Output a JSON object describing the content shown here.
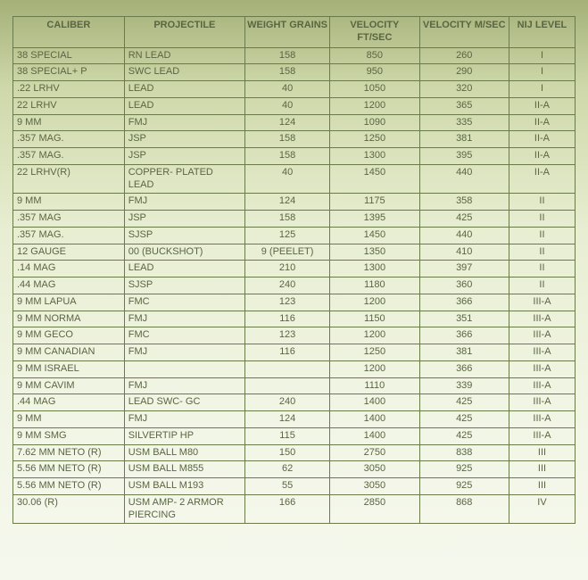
{
  "table": {
    "columns": [
      {
        "label": "CALIBER",
        "align": "left"
      },
      {
        "label": "PROJECTILE",
        "align": "left"
      },
      {
        "label": "WEIGHT GRAINS",
        "align": "center"
      },
      {
        "label": "VELOCITY FT/SEC",
        "align": "center"
      },
      {
        "label": "VELOCITY M/SEC",
        "align": "center"
      },
      {
        "label": "NIJ LEVEL",
        "align": "center"
      }
    ],
    "rows": [
      [
        "38 SPECIAL",
        "RN LEAD",
        "158",
        "850",
        "260",
        "I"
      ],
      [
        "38 SPECIAL+ P",
        "SWC LEAD",
        "158",
        "950",
        "290",
        "I"
      ],
      [
        ".22 LRHV",
        "LEAD",
        "40",
        "1050",
        "320",
        "I"
      ],
      [
        "22 LRHV",
        "LEAD",
        "40",
        "1200",
        "365",
        "II-A"
      ],
      [
        "9 MM",
        "FMJ",
        "124",
        "1090",
        "335",
        "II-A"
      ],
      [
        ".357 MAG.",
        "JSP",
        "158",
        "1250",
        "381",
        "II-A"
      ],
      [
        ".357 MAG.",
        "JSP",
        "158",
        "1300",
        "395",
        "II-A"
      ],
      [
        "22 LRHV(R)",
        "COPPER- PLATED LEAD",
        "40",
        "1450",
        "440",
        "II-A"
      ],
      [
        "9 MM",
        "FMJ",
        "124",
        "1175",
        "358",
        "II"
      ],
      [
        ".357 MAG",
        "JSP",
        "158",
        "1395",
        "425",
        "II"
      ],
      [
        ".357 MAG.",
        "SJSP",
        "125",
        "1450",
        "440",
        "II"
      ],
      [
        "12 GAUGE",
        "00 (BUCKSHOT)",
        "9 (PEELET)",
        "1350",
        "410",
        "II"
      ],
      [
        ".14 MAG",
        "LEAD",
        "210",
        "1300",
        "397",
        "II"
      ],
      [
        ".44 MAG",
        "SJSP",
        "240",
        "1180",
        "360",
        "II"
      ],
      [
        "9 MM LAPUA",
        "FMC",
        "123",
        "1200",
        "366",
        "III-A"
      ],
      [
        "9 MM NORMA",
        "FMJ",
        "116",
        "1150",
        "351",
        "III-A"
      ],
      [
        "9 MM GECO",
        "FMC",
        "123",
        "1200",
        "366",
        "III-A"
      ],
      [
        "9 MM CANADIAN",
        "FMJ",
        "116",
        "1250",
        "381",
        "III-A"
      ],
      [
        "9 MM ISRAEL",
        "",
        "",
        "1200",
        "366",
        "III-A"
      ],
      [
        "9 MM CAVIM",
        "FMJ",
        "",
        "1110",
        "339",
        "III-A"
      ],
      [
        ".44 MAG",
        "LEAD SWC- GC",
        "240",
        "1400",
        "425",
        "III-A"
      ],
      [
        "9 MM",
        "FMJ",
        "124",
        "1400",
        "425",
        "III-A"
      ],
      [
        "9 MM SMG",
        "SILVERTIP HP",
        "115",
        "1400",
        "425",
        "III-A"
      ],
      [
        "7.62 MM NETO (R)",
        "USM BALL M80",
        "150",
        "2750",
        "838",
        "III"
      ],
      [
        "5.56 MM NETO (R)",
        "USM BALL M855",
        "62",
        "3050",
        "925",
        "III"
      ],
      [
        "5.56 MM NETO (R)",
        "USM BALL M193",
        "55",
        "3050",
        "925",
        "III"
      ],
      [
        "30.06 (R)",
        "USM AMP- 2 ARMOR PIERCING",
        "166",
        "2850",
        "868",
        "IV"
      ]
    ],
    "border_color": "#6b7a4a",
    "text_color": "#5a6542",
    "font_size_pt": 8,
    "background_gradient": [
      "#a4b078",
      "#ced8a9",
      "#e8eed2",
      "#f1f5e4",
      "#f5f8ed"
    ]
  }
}
